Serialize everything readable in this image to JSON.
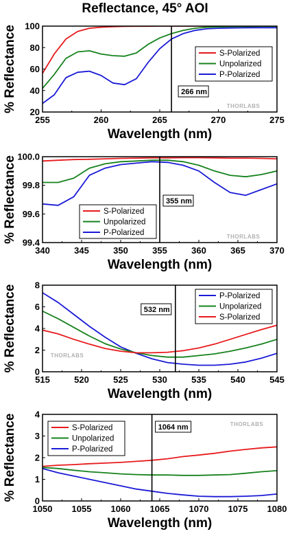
{
  "page": {
    "title": "Reflectance, 45° AOI"
  },
  "chart_data": [
    {
      "type": "line",
      "title": "Reflectance, 45° AOI",
      "xlabel": "Wavelength (nm)",
      "ylabel": "% Reflectance",
      "xlim": [
        255,
        275
      ],
      "ylim": [
        20,
        100
      ],
      "xticks": [
        255,
        260,
        265,
        270,
        275
      ],
      "yticks": [
        20,
        40,
        60,
        80,
        100
      ],
      "tick_format": 0,
      "grid": false,
      "legend_position": "center-right",
      "marker": {
        "x": 266,
        "label": "266 nm"
      },
      "watermark": "THORLABS",
      "series": [
        {
          "name": "S-Polarized",
          "color": "#e8191c",
          "x": [
            255,
            256,
            257,
            258,
            259,
            260,
            261,
            262,
            263,
            264,
            265,
            266,
            267,
            268,
            269,
            270,
            271,
            272,
            273,
            274,
            275
          ],
          "y": [
            56,
            74,
            88,
            95,
            98,
            99,
            99.5,
            99.8,
            99.9,
            99.9,
            100,
            100,
            100,
            100,
            100,
            100,
            100,
            100,
            100,
            100,
            100
          ]
        },
        {
          "name": "Unpolarized",
          "color": "#15821c",
          "x": [
            255,
            256,
            257,
            258,
            259,
            260,
            261,
            262,
            263,
            264,
            265,
            266,
            267,
            268,
            269,
            270,
            271,
            272,
            273,
            274,
            275
          ],
          "y": [
            42,
            55,
            70,
            76,
            77,
            74,
            72.5,
            72,
            75,
            83,
            89,
            93,
            96,
            98,
            99,
            99.3,
            99.5,
            99.6,
            99.7,
            99.8,
            99.8
          ]
        },
        {
          "name": "P-Polarized",
          "color": "#1a1ad6",
          "x": [
            255,
            256,
            257,
            258,
            259,
            260,
            261,
            262,
            263,
            264,
            265,
            266,
            267,
            268,
            269,
            270,
            271,
            272,
            273,
            274,
            275
          ],
          "y": [
            28,
            36,
            52,
            57,
            58,
            54,
            47,
            45.5,
            51,
            66,
            79,
            88,
            93,
            96,
            97.5,
            98,
            98.3,
            98.4,
            98.5,
            98.5,
            98.5
          ]
        }
      ]
    },
    {
      "type": "line",
      "xlabel": "Wavelength (nm)",
      "ylabel": "% Reflectance",
      "xlim": [
        340,
        370
      ],
      "ylim": [
        99.4,
        100.0
      ],
      "xticks": [
        340,
        345,
        350,
        355,
        360,
        365,
        370
      ],
      "yticks": [
        99.4,
        99.6,
        99.8,
        100.0
      ],
      "tick_format": 1,
      "grid": false,
      "legend_position": "bottom-left",
      "marker": {
        "x": 355,
        "label": "355 nm"
      },
      "watermark": "THORLABS",
      "series": [
        {
          "name": "S-Polarized",
          "color": "#e8191c",
          "x": [
            340,
            342,
            344,
            346,
            348,
            350,
            352,
            354,
            356,
            358,
            360,
            362,
            364,
            366,
            368,
            370
          ],
          "y": [
            99.97,
            99.975,
            99.98,
            99.982,
            99.985,
            99.988,
            99.99,
            99.992,
            99.992,
            99.993,
            99.993,
            99.992,
            99.99,
            99.99,
            99.988,
            99.985
          ]
        },
        {
          "name": "Unpolarized",
          "color": "#15821c",
          "x": [
            340,
            342,
            344,
            346,
            348,
            350,
            352,
            354,
            356,
            358,
            360,
            362,
            364,
            366,
            368,
            370
          ],
          "y": [
            99.82,
            99.82,
            99.85,
            99.92,
            99.95,
            99.965,
            99.97,
            99.975,
            99.975,
            99.965,
            99.94,
            99.9,
            99.87,
            99.86,
            99.875,
            99.9
          ]
        },
        {
          "name": "P-Polarized",
          "color": "#1a1ad6",
          "x": [
            340,
            342,
            344,
            346,
            348,
            350,
            352,
            354,
            356,
            358,
            360,
            362,
            364,
            366,
            368,
            370
          ],
          "y": [
            99.67,
            99.66,
            99.72,
            99.87,
            99.92,
            99.945,
            99.955,
            99.965,
            99.96,
            99.94,
            99.9,
            99.82,
            99.75,
            99.73,
            99.77,
            99.81
          ]
        }
      ]
    },
    {
      "type": "line",
      "xlabel": "Wavelength (nm)",
      "ylabel": "% Reflectance",
      "xlim": [
        515,
        545
      ],
      "ylim": [
        0,
        8
      ],
      "xticks": [
        515,
        520,
        525,
        530,
        535,
        540,
        545
      ],
      "yticks": [
        0,
        2,
        4,
        6,
        8
      ],
      "tick_format": 0,
      "grid": false,
      "legend_position": "top-right",
      "marker": {
        "x": 532,
        "label": "532 nm"
      },
      "watermark": "THORLABS",
      "series": [
        {
          "name": "P-Polarized",
          "color": "#1a1ad6",
          "x": [
            515,
            517,
            519,
            521,
            523,
            525,
            527,
            529,
            531,
            533,
            535,
            537,
            539,
            541,
            543,
            545
          ],
          "y": [
            7.3,
            6.4,
            5.3,
            4.2,
            3.2,
            2.3,
            1.7,
            1.2,
            0.85,
            0.7,
            0.6,
            0.6,
            0.7,
            0.9,
            1.25,
            1.7
          ]
        },
        {
          "name": "Unpolarized",
          "color": "#15821c",
          "x": [
            515,
            517,
            519,
            521,
            523,
            525,
            527,
            529,
            531,
            533,
            535,
            537,
            539,
            541,
            543,
            545
          ],
          "y": [
            5.6,
            4.9,
            4.1,
            3.3,
            2.6,
            2.1,
            1.75,
            1.5,
            1.35,
            1.35,
            1.5,
            1.65,
            1.9,
            2.2,
            2.55,
            3.0
          ]
        },
        {
          "name": "S-Polarized",
          "color": "#e8191c",
          "x": [
            515,
            517,
            519,
            521,
            523,
            525,
            527,
            529,
            531,
            533,
            535,
            537,
            539,
            541,
            543,
            545
          ],
          "y": [
            3.85,
            3.5,
            3.0,
            2.55,
            2.15,
            1.9,
            1.75,
            1.75,
            1.8,
            1.95,
            2.2,
            2.55,
            3.0,
            3.45,
            3.9,
            4.3
          ]
        }
      ]
    },
    {
      "type": "line",
      "xlabel": "Wavelength (nm)",
      "ylabel": "% Reflectance",
      "xlim": [
        1050,
        1080
      ],
      "ylim": [
        0,
        4
      ],
      "xticks": [
        1050,
        1055,
        1060,
        1065,
        1070,
        1075,
        1080
      ],
      "yticks": [
        0,
        1,
        2,
        3,
        4
      ],
      "tick_format": 0,
      "grid": false,
      "legend_position": "top-left",
      "marker": {
        "x": 1064,
        "label": "1064 nm"
      },
      "watermark": "THORLABS",
      "series": [
        {
          "name": "S-Polarized",
          "color": "#e8191c",
          "x": [
            1050,
            1052,
            1054,
            1056,
            1058,
            1060,
            1062,
            1064,
            1066,
            1068,
            1070,
            1072,
            1074,
            1076,
            1078,
            1080
          ],
          "y": [
            1.6,
            1.65,
            1.68,
            1.72,
            1.75,
            1.78,
            1.83,
            1.88,
            1.95,
            2.05,
            2.12,
            2.2,
            2.3,
            2.38,
            2.45,
            2.5
          ]
        },
        {
          "name": "Unpolarized",
          "color": "#15821c",
          "x": [
            1050,
            1052,
            1054,
            1056,
            1058,
            1060,
            1062,
            1064,
            1066,
            1068,
            1070,
            1072,
            1074,
            1076,
            1078,
            1080
          ],
          "y": [
            1.55,
            1.5,
            1.42,
            1.35,
            1.3,
            1.25,
            1.22,
            1.2,
            1.2,
            1.18,
            1.18,
            1.2,
            1.22,
            1.28,
            1.35,
            1.4
          ]
        },
        {
          "name": "P-Polarized",
          "color": "#1a1ad6",
          "x": [
            1050,
            1052,
            1054,
            1056,
            1058,
            1060,
            1062,
            1064,
            1066,
            1068,
            1070,
            1072,
            1074,
            1076,
            1078,
            1080
          ],
          "y": [
            1.5,
            1.3,
            1.15,
            1.0,
            0.85,
            0.7,
            0.55,
            0.45,
            0.35,
            0.28,
            0.22,
            0.2,
            0.2,
            0.22,
            0.25,
            0.32
          ]
        }
      ]
    }
  ]
}
